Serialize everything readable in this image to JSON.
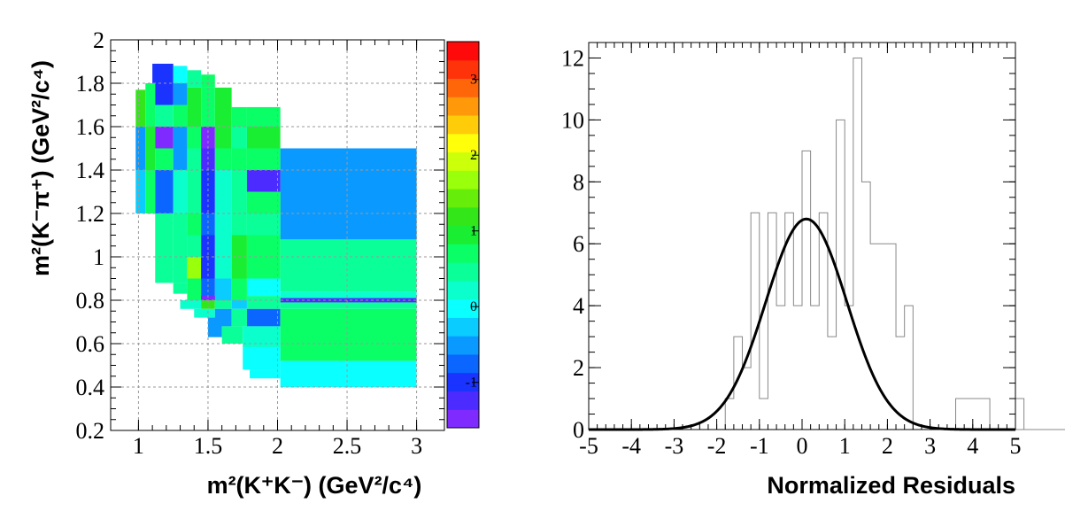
{
  "chart_data": [
    {
      "type": "heatmap",
      "title": "",
      "xlabel": "m²(K⁺K⁻) (GeV²/c⁴)",
      "ylabel": "m²(K⁻π⁺) (GeV²/c⁴)",
      "xlim": [
        0.8,
        3.2
      ],
      "ylim": [
        0.2,
        2.0
      ],
      "grid": true,
      "x_ticks": [
        "1",
        "1.5",
        "2",
        "2.5",
        "3"
      ],
      "x_tick_values": [
        1,
        1.5,
        2,
        2.5,
        3
      ],
      "y_ticks": [
        "0.2",
        "0.4",
        "0.6",
        "0.8",
        "1",
        "1.2",
        "1.4",
        "1.6",
        "1.8",
        "2"
      ],
      "y_tick_values": [
        0.2,
        0.4,
        0.6,
        0.8,
        1.0,
        1.2,
        1.4,
        1.6,
        1.8,
        2.0
      ],
      "z_range": [
        -1.6,
        3.5
      ],
      "palette_ticks": [
        "-1",
        "0",
        "1",
        "2",
        "3"
      ],
      "palette_tick_values": [
        -1,
        0,
        1,
        2,
        3
      ],
      "palette_colors": [
        "#7f2bff",
        "#4b2bff",
        "#1a33ff",
        "#0a66ff",
        "#0a99ff",
        "#0bccff",
        "#0affff",
        "#0affcc",
        "#0aff99",
        "#0aff66",
        "#1aee33",
        "#33e61a",
        "#66ee0a",
        "#99ff0a",
        "#ccff0a",
        "#ffff0a",
        "#ffcc0a",
        "#ff990a",
        "#ff660a",
        "#ff330a",
        "#ff0a0a"
      ],
      "cells": [
        {
          "x": [
            1.1,
            1.25
          ],
          "y": [
            1.8,
            1.89
          ],
          "z": -1.0
        },
        {
          "x": [
            1.25,
            1.35
          ],
          "y": [
            1.8,
            1.88
          ],
          "z": 0.0
        },
        {
          "x": [
            1.35,
            1.45
          ],
          "y": [
            1.78,
            1.86
          ],
          "z": 0.5
        },
        {
          "x": [
            1.45,
            1.55
          ],
          "y": [
            1.78,
            1.84
          ],
          "z": 0.6
        },
        {
          "x": [
            0.98,
            1.05
          ],
          "y": [
            1.6,
            1.77
          ],
          "z": 1.2
        },
        {
          "x": [
            1.05,
            1.12
          ],
          "y": [
            1.6,
            1.8
          ],
          "z": 0.6
        },
        {
          "x": [
            1.12,
            1.25
          ],
          "y": [
            1.7,
            1.8
          ],
          "z": -1.0
        },
        {
          "x": [
            1.25,
            1.35
          ],
          "y": [
            1.7,
            1.8
          ],
          "z": -0.4
        },
        {
          "x": [
            1.35,
            1.45
          ],
          "y": [
            1.7,
            1.78
          ],
          "z": 0.9
        },
        {
          "x": [
            1.45,
            1.55
          ],
          "y": [
            1.7,
            1.78
          ],
          "z": 0.6
        },
        {
          "x": [
            1.55,
            1.67
          ],
          "y": [
            1.7,
            1.78
          ],
          "z": 0.9
        },
        {
          "x": [
            1.12,
            1.25
          ],
          "y": [
            1.6,
            1.7
          ],
          "z": 0.5
        },
        {
          "x": [
            1.25,
            1.35
          ],
          "y": [
            1.6,
            1.7
          ],
          "z": 0.7
        },
        {
          "x": [
            1.35,
            1.45
          ],
          "y": [
            1.6,
            1.7
          ],
          "z": 0.9
        },
        {
          "x": [
            1.45,
            1.55
          ],
          "y": [
            1.6,
            1.7
          ],
          "z": 0.8
        },
        {
          "x": [
            1.55,
            1.67
          ],
          "y": [
            1.6,
            1.7
          ],
          "z": 1.0
        },
        {
          "x": [
            1.67,
            1.78
          ],
          "y": [
            1.6,
            1.69
          ],
          "z": 0.7
        },
        {
          "x": [
            1.78,
            2.02
          ],
          "y": [
            1.6,
            1.69
          ],
          "z": 0.8
        },
        {
          "x": [
            0.98,
            1.05
          ],
          "y": [
            1.4,
            1.6
          ],
          "z": -0.4
        },
        {
          "x": [
            1.05,
            1.12
          ],
          "y": [
            1.4,
            1.6
          ],
          "z": 0.9
        },
        {
          "x": [
            1.12,
            1.25
          ],
          "y": [
            1.5,
            1.6
          ],
          "z": -1.5
        },
        {
          "x": [
            1.25,
            1.35
          ],
          "y": [
            1.5,
            1.6
          ],
          "z": -0.5
        },
        {
          "x": [
            1.35,
            1.45
          ],
          "y": [
            1.5,
            1.6
          ],
          "z": 0.8
        },
        {
          "x": [
            1.45,
            1.55
          ],
          "y": [
            1.5,
            1.6
          ],
          "z": -1.4
        },
        {
          "x": [
            1.55,
            1.67
          ],
          "y": [
            1.5,
            1.6
          ],
          "z": 0.9
        },
        {
          "x": [
            1.67,
            1.78
          ],
          "y": [
            1.5,
            1.6
          ],
          "z": 0.5
        },
        {
          "x": [
            1.78,
            2.02
          ],
          "y": [
            1.5,
            1.6
          ],
          "z": 0.9
        },
        {
          "x": [
            1.12,
            1.25
          ],
          "y": [
            1.4,
            1.5
          ],
          "z": 0.6
        },
        {
          "x": [
            1.25,
            1.35
          ],
          "y": [
            1.4,
            1.5
          ],
          "z": -0.5
        },
        {
          "x": [
            1.35,
            1.45
          ],
          "y": [
            1.4,
            1.5
          ],
          "z": 0.5
        },
        {
          "x": [
            1.45,
            1.55
          ],
          "y": [
            1.4,
            1.5
          ],
          "z": -1.2
        },
        {
          "x": [
            1.55,
            1.67
          ],
          "y": [
            1.4,
            1.5
          ],
          "z": 0.7
        },
        {
          "x": [
            1.67,
            1.78
          ],
          "y": [
            1.4,
            1.5
          ],
          "z": 0.6
        },
        {
          "x": [
            1.78,
            2.02
          ],
          "y": [
            1.4,
            1.5
          ],
          "z": 0.7
        },
        {
          "x": [
            2.02,
            3.0
          ],
          "y": [
            1.08,
            1.5
          ],
          "z": -0.5
        },
        {
          "x": [
            0.98,
            1.05
          ],
          "y": [
            1.2,
            1.4
          ],
          "z": -0.3
        },
        {
          "x": [
            1.05,
            1.12
          ],
          "y": [
            1.2,
            1.4
          ],
          "z": 0.7
        },
        {
          "x": [
            1.12,
            1.25
          ],
          "y": [
            1.2,
            1.4
          ],
          "z": -0.7
        },
        {
          "x": [
            1.25,
            1.35
          ],
          "y": [
            1.2,
            1.4
          ],
          "z": 0.3
        },
        {
          "x": [
            1.35,
            1.45
          ],
          "y": [
            1.2,
            1.4
          ],
          "z": 0.5
        },
        {
          "x": [
            1.45,
            1.55
          ],
          "y": [
            1.2,
            1.4
          ],
          "z": -0.9
        },
        {
          "x": [
            1.55,
            1.67
          ],
          "y": [
            1.2,
            1.4
          ],
          "z": 0.1
        },
        {
          "x": [
            1.67,
            1.78
          ],
          "y": [
            1.2,
            1.4
          ],
          "z": 0.5
        },
        {
          "x": [
            1.78,
            2.02
          ],
          "y": [
            1.3,
            1.4
          ],
          "z": -1.3
        },
        {
          "x": [
            1.78,
            2.02
          ],
          "y": [
            1.2,
            1.3
          ],
          "z": 0.6
        },
        {
          "x": [
            1.12,
            1.25
          ],
          "y": [
            1.1,
            1.2
          ],
          "z": 0.5
        },
        {
          "x": [
            1.25,
            1.35
          ],
          "y": [
            1.1,
            1.2
          ],
          "z": 0.4
        },
        {
          "x": [
            1.35,
            1.45
          ],
          "y": [
            1.1,
            1.2
          ],
          "z": 0.6
        },
        {
          "x": [
            1.45,
            1.55
          ],
          "y": [
            1.1,
            1.2
          ],
          "z": -0.8
        },
        {
          "x": [
            1.55,
            1.67
          ],
          "y": [
            1.1,
            1.2
          ],
          "z": 0.3
        },
        {
          "x": [
            1.67,
            1.78
          ],
          "y": [
            1.1,
            1.2
          ],
          "z": 0.4
        },
        {
          "x": [
            1.78,
            2.02
          ],
          "y": [
            1.1,
            1.2
          ],
          "z": 0.5
        },
        {
          "x": [
            1.12,
            1.25
          ],
          "y": [
            0.88,
            1.1
          ],
          "z": 0.4
        },
        {
          "x": [
            1.25,
            1.35
          ],
          "y": [
            0.88,
            1.1
          ],
          "z": 0.5
        },
        {
          "x": [
            1.35,
            1.45
          ],
          "y": [
            1.0,
            1.1
          ],
          "z": 0.5
        },
        {
          "x": [
            1.35,
            1.45
          ],
          "y": [
            0.9,
            1.0
          ],
          "z": 1.7
        },
        {
          "x": [
            1.45,
            1.55
          ],
          "y": [
            0.9,
            1.1
          ],
          "z": -1.0
        },
        {
          "x": [
            1.55,
            1.67
          ],
          "y": [
            0.9,
            1.1
          ],
          "z": 0.3
        },
        {
          "x": [
            1.67,
            1.78
          ],
          "y": [
            0.9,
            1.1
          ],
          "z": 1.0
        },
        {
          "x": [
            1.78,
            2.02
          ],
          "y": [
            0.9,
            1.1
          ],
          "z": 0.6
        },
        {
          "x": [
            2.02,
            3.0
          ],
          "y": [
            0.84,
            1.08
          ],
          "z": 0.4
        },
        {
          "x": [
            1.25,
            1.35
          ],
          "y": [
            0.83,
            0.88
          ],
          "z": 0.4
        },
        {
          "x": [
            1.35,
            1.45
          ],
          "y": [
            0.8,
            0.9
          ],
          "z": 0.7
        },
        {
          "x": [
            1.45,
            1.55
          ],
          "y": [
            0.8,
            0.9
          ],
          "z": -0.8
        },
        {
          "x": [
            1.55,
            1.67
          ],
          "y": [
            0.8,
            0.9
          ],
          "z": -0.2
        },
        {
          "x": [
            1.67,
            1.78
          ],
          "y": [
            0.8,
            0.9
          ],
          "z": 0.6
        },
        {
          "x": [
            1.78,
            2.02
          ],
          "y": [
            0.82,
            0.9
          ],
          "z": 0.0
        },
        {
          "x": [
            2.02,
            3.0
          ],
          "y": [
            0.81,
            0.84
          ],
          "z": 0.1
        },
        {
          "x": [
            2.02,
            3.0
          ],
          "y": [
            0.79,
            0.81
          ],
          "z": -1.2
        },
        {
          "x": [
            1.3,
            1.45
          ],
          "y": [
            0.76,
            0.8
          ],
          "z": 0.1
        },
        {
          "x": [
            1.45,
            1.55
          ],
          "y": [
            0.76,
            0.8
          ],
          "z": 1.3
        },
        {
          "x": [
            1.45,
            1.55
          ],
          "y": [
            0.8,
            0.82
          ],
          "z": -1.4
        },
        {
          "x": [
            1.55,
            1.67
          ],
          "y": [
            0.76,
            0.8
          ],
          "z": 0.4
        },
        {
          "x": [
            1.67,
            1.78
          ],
          "y": [
            0.76,
            0.8
          ],
          "z": -0.2
        },
        {
          "x": [
            1.78,
            2.02
          ],
          "y": [
            0.76,
            0.82
          ],
          "z": 0.4
        },
        {
          "x": [
            2.02,
            3.0
          ],
          "y": [
            0.76,
            0.79
          ],
          "z": 0.5
        },
        {
          "x": [
            1.4,
            1.55
          ],
          "y": [
            0.72,
            0.76
          ],
          "z": 0.1
        },
        {
          "x": [
            1.55,
            1.67
          ],
          "y": [
            0.68,
            0.76
          ],
          "z": -0.5
        },
        {
          "x": [
            1.67,
            1.78
          ],
          "y": [
            0.68,
            0.76
          ],
          "z": 0.5
        },
        {
          "x": [
            1.78,
            2.02
          ],
          "y": [
            0.68,
            0.76
          ],
          "z": -0.7
        },
        {
          "x": [
            2.02,
            3.0
          ],
          "y": [
            0.52,
            0.76
          ],
          "z": 0.7
        },
        {
          "x": [
            1.5,
            1.6
          ],
          "y": [
            0.63,
            0.72
          ],
          "z": -0.6
        },
        {
          "x": [
            1.6,
            1.75
          ],
          "y": [
            0.6,
            0.68
          ],
          "z": 0.5
        },
        {
          "x": [
            1.75,
            2.02
          ],
          "y": [
            0.58,
            0.68
          ],
          "z": 0.3
        },
        {
          "x": [
            1.75,
            2.02
          ],
          "y": [
            0.48,
            0.58
          ],
          "z": 0.0
        },
        {
          "x": [
            1.8,
            2.02
          ],
          "y": [
            0.44,
            0.48
          ],
          "z": 0.0
        },
        {
          "x": [
            2.02,
            3.0
          ],
          "y": [
            0.4,
            0.52
          ],
          "z": 0.0
        }
      ]
    },
    {
      "type": "histogram",
      "title": "",
      "xlabel": "Normalized Residuals",
      "ylabel": "",
      "xlim": [
        -5,
        5
      ],
      "ylim": [
        0,
        12.5
      ],
      "grid": false,
      "x_ticks": [
        "-5",
        "-4",
        "-3",
        "-2",
        "-1",
        "0",
        "1",
        "2",
        "3",
        "4",
        "5"
      ],
      "x_tick_values": [
        -5,
        -4,
        -3,
        -2,
        -1,
        0,
        1,
        2,
        3,
        4,
        5
      ],
      "y_ticks": [
        "0",
        "2",
        "4",
        "6",
        "8",
        "10",
        "12"
      ],
      "y_tick_values": [
        0,
        2,
        4,
        6,
        8,
        10,
        12
      ],
      "bin_width": 0.2,
      "bins_start": -5,
      "counts": [
        0,
        0,
        0,
        0,
        0,
        0,
        0,
        0,
        0,
        0,
        0,
        0,
        0,
        0,
        0,
        0,
        1,
        3,
        2,
        7,
        1,
        7,
        4,
        7,
        4,
        9,
        4,
        7,
        3,
        10,
        4,
        12,
        8,
        6,
        6,
        6,
        3,
        4,
        0,
        0,
        0,
        0,
        0,
        1,
        1,
        1,
        1,
        0,
        0,
        0,
        1,
        0,
        0,
        0,
        0,
        0,
        0,
        0,
        0,
        0
      ],
      "fit": {
        "type": "gaussian",
        "amplitude": 6.8,
        "mean": 0.1,
        "sigma": 0.95
      }
    }
  ]
}
